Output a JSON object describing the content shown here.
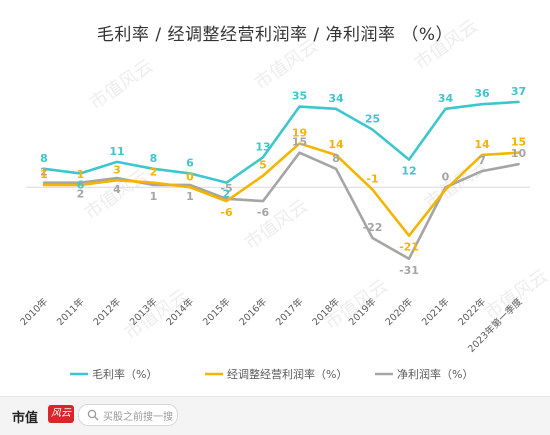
{
  "chart_data": {
    "type": "line",
    "title": "毛利率 / 经调整经营利润率 / 净利润率   （%）",
    "categories": [
      "2010年",
      "2011年",
      "2012年",
      "2013年",
      "2014年",
      "2015年",
      "2016年",
      "2017年",
      "2018年",
      "2019年",
      "2020年",
      "2021年",
      "2022年",
      "2023年第一季度"
    ],
    "ylim": [
      -35,
      40
    ],
    "grid": false,
    "legend_position": "bottom",
    "series": [
      {
        "name": "毛利率（%）",
        "color": "#3ec6cf",
        "values": [
          8,
          6,
          11,
          8,
          6,
          2,
          13,
          35,
          34,
          25,
          12,
          34,
          36,
          37
        ],
        "labels": [
          "8",
          "6",
          "11",
          "8",
          "6",
          "2",
          "13",
          "35",
          "34",
          "25",
          "12",
          "34",
          "36",
          "37"
        ]
      },
      {
        "name": "经调整经营利润率（%）",
        "color": "#f5b400",
        "values": [
          1,
          1,
          3,
          2,
          0,
          -6,
          5,
          19,
          14,
          -1,
          -21,
          -1,
          14,
          15
        ],
        "labels": [
          "1",
          "1",
          "3",
          "2",
          "0",
          "-6",
          "5",
          "19",
          "14",
          "-1",
          "-21",
          "",
          "14",
          "15"
        ]
      },
      {
        "name": "净利润率（%）",
        "color": "#a5a5a5",
        "values": [
          2,
          2,
          4,
          1,
          1,
          -5,
          -6,
          15,
          8,
          -22,
          -31,
          0,
          7,
          10
        ],
        "labels": [
          "2",
          "2",
          "4",
          "1",
          "1",
          "-5",
          "-6",
          "15",
          "8",
          "-22",
          "-31",
          "0",
          "7",
          "10"
        ]
      }
    ]
  },
  "footer": {
    "brand": "市值",
    "logo_text": "风云",
    "search_placeholder": "买股之前搜一搜"
  },
  "watermark_text": "市值风云"
}
